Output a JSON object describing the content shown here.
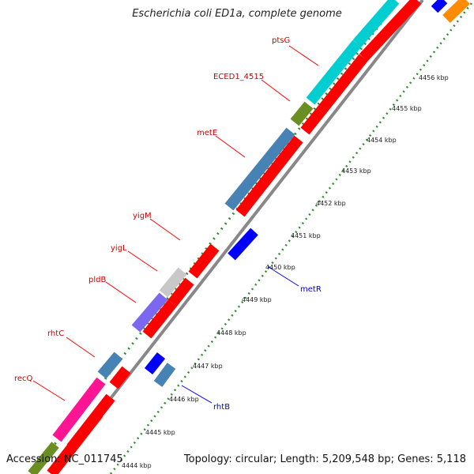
{
  "title": "Escherichia coli ED1a, complete genome",
  "accession": "Accession: NC_011745",
  "topology": "Topology: circular; Length: 5,209,548 bp; Genes: 5,118",
  "colors": {
    "forward_label": "#cc0000",
    "reverse_label": "#0000cc",
    "dots": "#2e8b2e"
  },
  "ticks": [
    "4444 kbp",
    "4445 kbp",
    "4446 kbp",
    "4447 kbp",
    "4448 kbp",
    "4449 kbp",
    "4450 kbp",
    "4451 kbp",
    "4452 kbp",
    "4453 kbp",
    "4454 kbp",
    "4455 kbp",
    "4456 kbp"
  ],
  "forward_genes": [
    {
      "label": "recQ",
      "color": "#ff1493"
    },
    {
      "label": "rhtC",
      "color": "#4682b4"
    },
    {
      "label": "pldB",
      "color": "#7b68ee"
    },
    {
      "label": "yigL",
      "color": "#c8c8c8"
    },
    {
      "label": "yigM",
      "color": ""
    },
    {
      "label": "metE",
      "color": "#4682b4"
    },
    {
      "label": "ECED1_4515",
      "color": "#6b8e23"
    },
    {
      "label": "ptsG",
      "color": "#00ced1"
    }
  ],
  "reverse_genes": [
    {
      "label": "rhtB",
      "color": "#4682b4"
    },
    {
      "label": "metR",
      "color": "#0000ff"
    }
  ]
}
